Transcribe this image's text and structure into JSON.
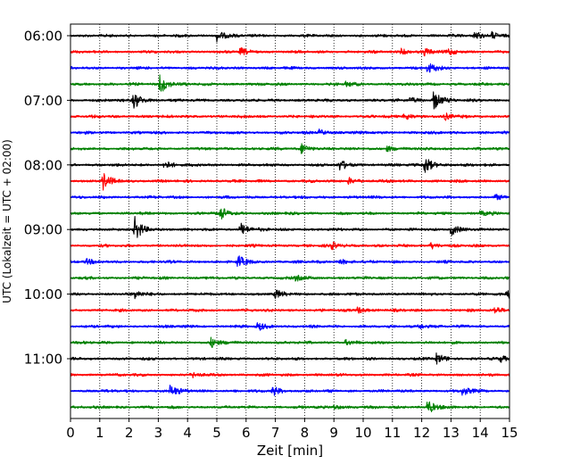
{
  "chart_data": {
    "type": "helicorder",
    "xlabel": "Zeit  [min]",
    "ylabel": "UTC (Lokalzeit = UTC + 02:00)",
    "xlim": [
      0,
      15
    ],
    "x_ticks": [
      "0",
      "1",
      "2",
      "3",
      "4",
      "5",
      "6",
      "7",
      "8",
      "9",
      "10",
      "11",
      "12",
      "13",
      "14",
      "15"
    ],
    "y_tick_labels": [
      "06:00",
      "07:00",
      "08:00",
      "09:00",
      "10:00",
      "11:00"
    ],
    "traces_per_hour": 4,
    "trace_minutes": 15,
    "grid": "vertical-dotted",
    "colors": [
      "#000000",
      "#ff0000",
      "#0000ff",
      "#008000"
    ],
    "traces": [
      {
        "start": "06:00",
        "color": "#000000",
        "events": [
          {
            "t": 5.0,
            "amp": 1.0
          },
          {
            "t": 13.8,
            "amp": 0.7
          },
          {
            "t": 14.4,
            "amp": 0.6
          }
        ]
      },
      {
        "start": "06:15",
        "color": "#ff0000",
        "events": [
          {
            "t": 5.8,
            "amp": 0.6
          },
          {
            "t": 11.3,
            "amp": 0.5
          },
          {
            "t": 12.1,
            "amp": 0.6
          },
          {
            "t": 12.9,
            "amp": 0.5
          }
        ]
      },
      {
        "start": "06:30",
        "color": "#0000ff",
        "events": [
          {
            "t": 12.2,
            "amp": 1.0
          }
        ]
      },
      {
        "start": "06:45",
        "color": "#008000",
        "events": [
          {
            "t": 3.05,
            "amp": 1.8
          },
          {
            "t": 9.4,
            "amp": 0.4
          }
        ]
      },
      {
        "start": "07:00",
        "color": "#000000",
        "events": [
          {
            "t": 2.15,
            "amp": 1.6
          },
          {
            "t": 12.4,
            "amp": 1.8
          },
          {
            "t": 11.6,
            "amp": 0.5
          }
        ]
      },
      {
        "start": "07:15",
        "color": "#ff0000",
        "events": [
          {
            "t": 11.4,
            "amp": 0.7
          },
          {
            "t": 12.8,
            "amp": 0.5
          }
        ]
      },
      {
        "start": "07:30",
        "color": "#0000ff",
        "events": [
          {
            "t": 8.5,
            "amp": 0.5
          }
        ]
      },
      {
        "start": "07:45",
        "color": "#008000",
        "events": [
          {
            "t": 7.9,
            "amp": 0.9
          },
          {
            "t": 10.8,
            "amp": 0.5
          }
        ]
      },
      {
        "start": "08:00",
        "color": "#000000",
        "events": [
          {
            "t": 3.2,
            "amp": 0.7
          },
          {
            "t": 9.2,
            "amp": 0.8
          },
          {
            "t": 12.1,
            "amp": 1.6
          }
        ]
      },
      {
        "start": "08:15",
        "color": "#ff0000",
        "events": [
          {
            "t": 1.1,
            "amp": 1.5
          },
          {
            "t": 9.5,
            "amp": 0.6
          }
        ]
      },
      {
        "start": "08:30",
        "color": "#0000ff",
        "events": [
          {
            "t": 14.5,
            "amp": 0.4
          }
        ]
      },
      {
        "start": "08:45",
        "color": "#008000",
        "events": [
          {
            "t": 5.1,
            "amp": 1.2
          },
          {
            "t": 14.0,
            "amp": 0.4
          }
        ]
      },
      {
        "start": "09:00",
        "color": "#000000",
        "events": [
          {
            "t": 2.2,
            "amp": 2.0
          },
          {
            "t": 5.8,
            "amp": 1.2
          },
          {
            "t": 13.0,
            "amp": 1.0
          }
        ]
      },
      {
        "start": "09:15",
        "color": "#ff0000",
        "events": [
          {
            "t": 8.9,
            "amp": 0.6
          },
          {
            "t": 12.3,
            "amp": 0.6
          }
        ]
      },
      {
        "start": "09:30",
        "color": "#0000ff",
        "events": [
          {
            "t": 5.7,
            "amp": 1.1
          },
          {
            "t": 0.5,
            "amp": 0.5
          },
          {
            "t": 9.2,
            "amp": 0.5
          }
        ]
      },
      {
        "start": "09:45",
        "color": "#008000",
        "events": [
          {
            "t": 7.7,
            "amp": 0.5
          }
        ]
      },
      {
        "start": "10:00",
        "color": "#000000",
        "events": [
          {
            "t": 2.2,
            "amp": 0.7
          },
          {
            "t": 7.0,
            "amp": 0.7
          },
          {
            "t": 14.9,
            "amp": 0.7
          }
        ]
      },
      {
        "start": "10:15",
        "color": "#ff0000",
        "events": [
          {
            "t": 9.8,
            "amp": 0.6
          },
          {
            "t": 14.5,
            "amp": 0.6
          }
        ]
      },
      {
        "start": "10:30",
        "color": "#0000ff",
        "events": [
          {
            "t": 6.4,
            "amp": 0.7
          },
          {
            "t": 11.9,
            "amp": 0.5
          }
        ]
      },
      {
        "start": "10:45",
        "color": "#008000",
        "events": [
          {
            "t": 4.8,
            "amp": 0.8
          },
          {
            "t": 9.4,
            "amp": 0.4
          }
        ]
      },
      {
        "start": "11:00",
        "color": "#000000",
        "events": [
          {
            "t": 12.5,
            "amp": 0.9
          },
          {
            "t": 14.7,
            "amp": 0.5
          }
        ]
      },
      {
        "start": "11:15",
        "color": "#ff0000",
        "events": [
          {
            "t": 4.2,
            "amp": 0.4
          }
        ]
      },
      {
        "start": "11:30",
        "color": "#0000ff",
        "events": [
          {
            "t": 3.4,
            "amp": 1.0
          },
          {
            "t": 6.9,
            "amp": 0.9
          },
          {
            "t": 13.4,
            "amp": 0.8
          }
        ]
      },
      {
        "start": "11:45",
        "color": "#008000",
        "events": [
          {
            "t": 12.2,
            "amp": 1.2
          },
          {
            "t": 9.0,
            "amp": 0.4
          }
        ]
      }
    ]
  }
}
